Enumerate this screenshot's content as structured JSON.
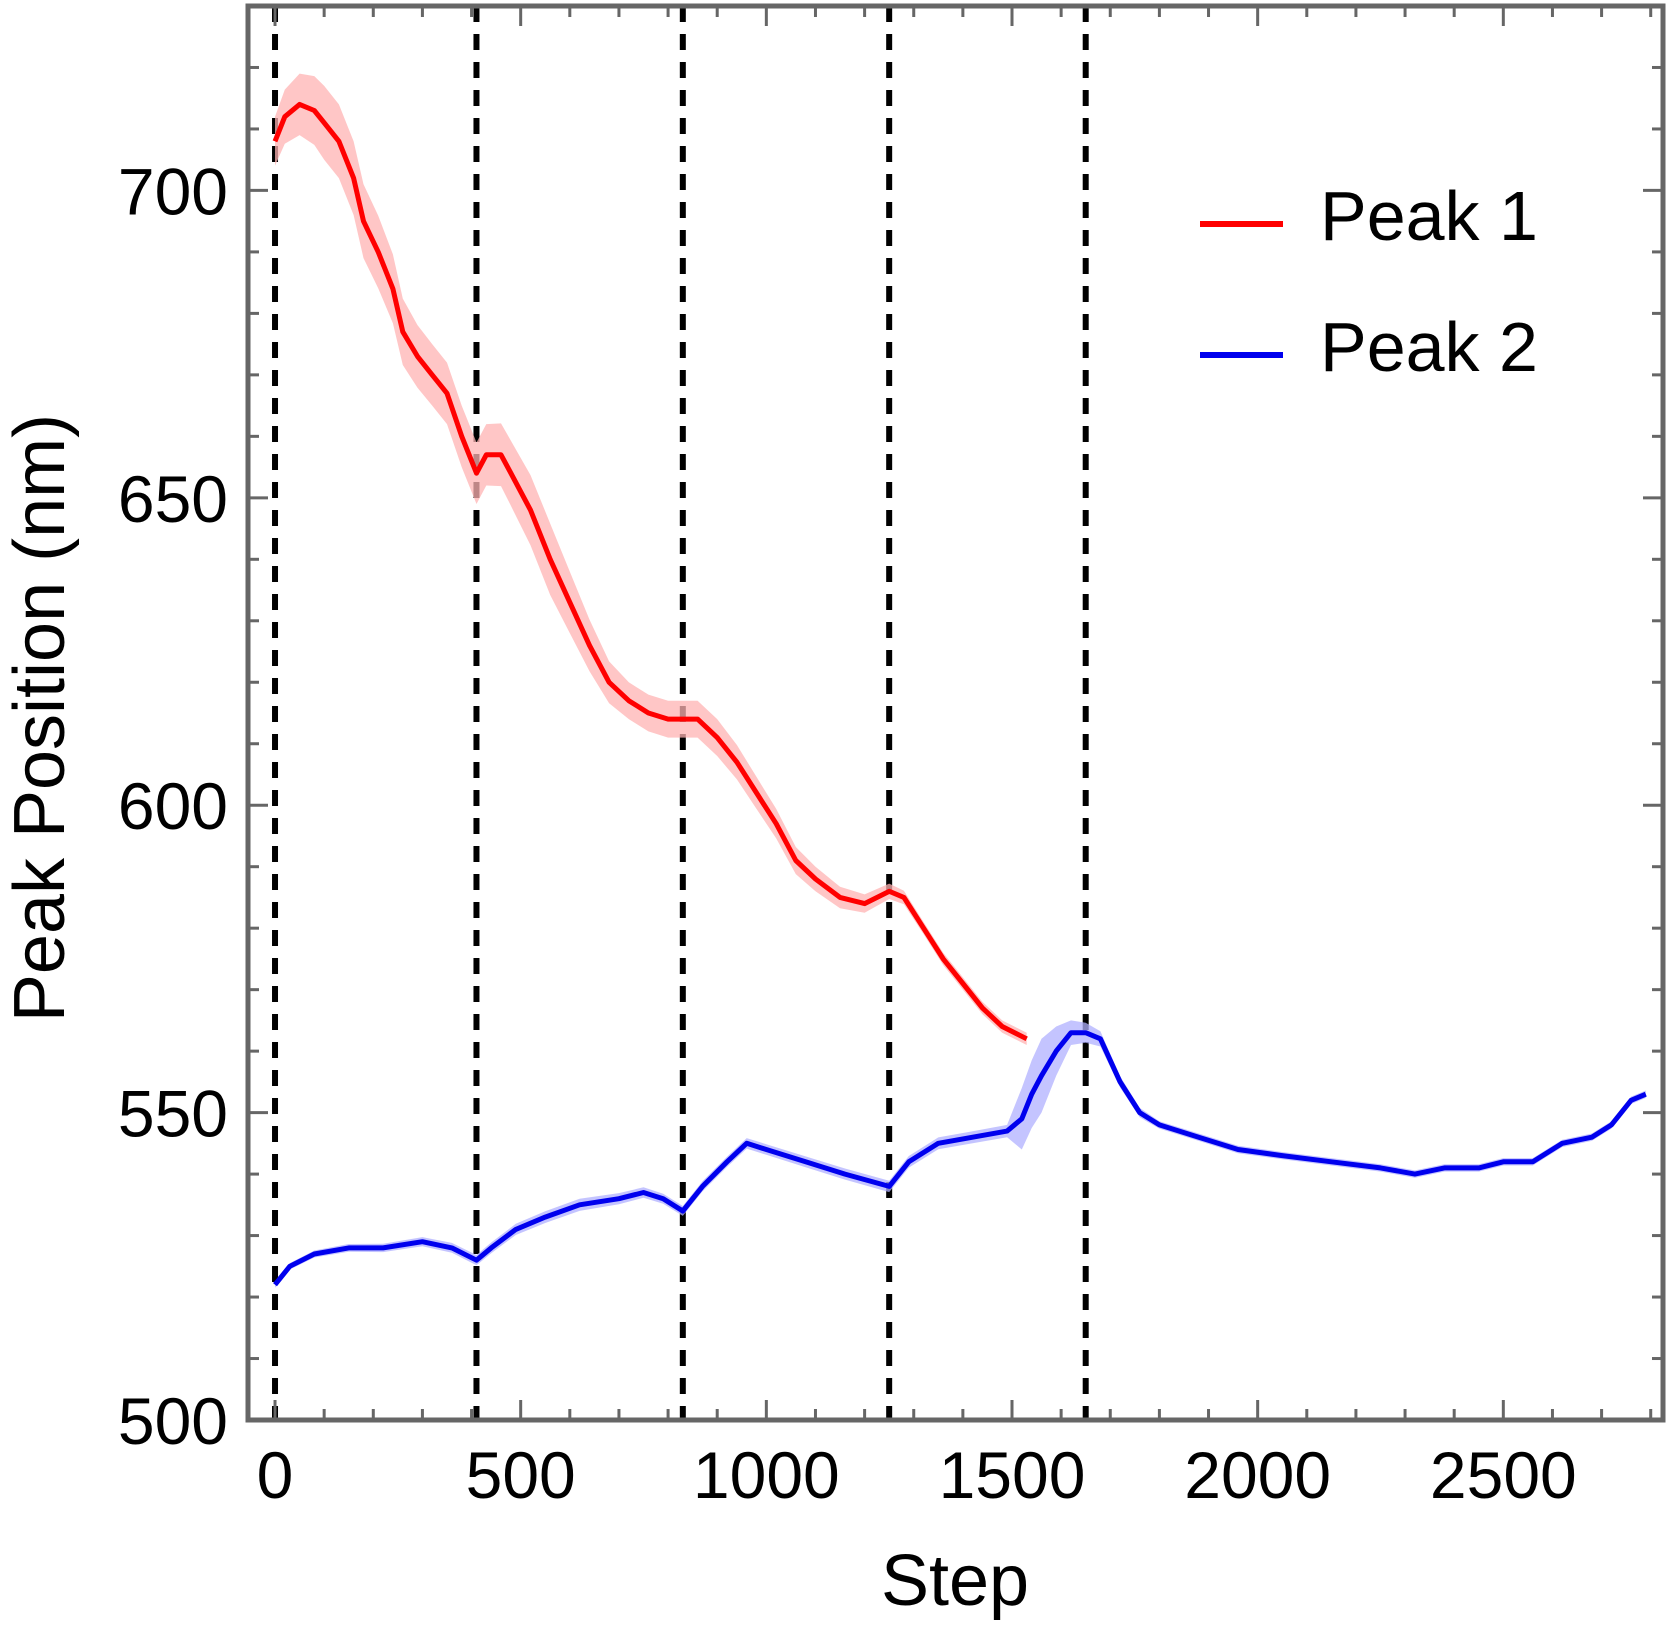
{
  "chart_data": {
    "type": "line",
    "xlabel": "Step",
    "ylabel": "Peak Position (nm)",
    "xlim": [
      -55,
      2825
    ],
    "ylim": [
      500,
      730
    ],
    "x_ticks": [
      "0",
      "500",
      "1000",
      "1500",
      "2000",
      "2500"
    ],
    "x_tick_values": [
      0,
      500,
      1000,
      1500,
      2000,
      2500
    ],
    "y_ticks": [
      "500",
      "550",
      "600",
      "650",
      "700"
    ],
    "y_tick_values": [
      500,
      550,
      600,
      650,
      700
    ],
    "vertical_dashed_lines": [
      0,
      410,
      830,
      1250,
      1650
    ],
    "legend_position": "top-right",
    "frame_color": "#666666",
    "series": [
      {
        "name": "Peak 1",
        "color": "#ff0000",
        "band_color": "#ffb3b3",
        "points": [
          [
            0,
            708
          ],
          [
            20,
            712
          ],
          [
            50,
            714
          ],
          [
            80,
            713
          ],
          [
            100,
            711
          ],
          [
            130,
            708
          ],
          [
            160,
            702
          ],
          [
            180,
            695
          ],
          [
            210,
            690
          ],
          [
            240,
            684
          ],
          [
            260,
            677
          ],
          [
            290,
            673
          ],
          [
            320,
            670
          ],
          [
            350,
            667
          ],
          [
            380,
            660
          ],
          [
            410,
            654
          ],
          [
            430,
            657
          ],
          [
            460,
            657
          ],
          [
            480,
            654
          ],
          [
            520,
            648
          ],
          [
            560,
            640
          ],
          [
            600,
            633
          ],
          [
            640,
            626
          ],
          [
            680,
            620
          ],
          [
            720,
            617
          ],
          [
            760,
            615
          ],
          [
            800,
            614
          ],
          [
            830,
            614
          ],
          [
            860,
            614
          ],
          [
            900,
            611
          ],
          [
            940,
            607
          ],
          [
            980,
            602
          ],
          [
            1020,
            597
          ],
          [
            1060,
            591
          ],
          [
            1100,
            588
          ],
          [
            1150,
            585
          ],
          [
            1200,
            584
          ],
          [
            1250,
            586
          ],
          [
            1280,
            585
          ],
          [
            1320,
            580
          ],
          [
            1360,
            575
          ],
          [
            1400,
            571
          ],
          [
            1440,
            567
          ],
          [
            1480,
            564
          ],
          [
            1530,
            562
          ]
        ],
        "band_width": [
          [
            0,
            4
          ],
          [
            100,
            6
          ],
          [
            200,
            6
          ],
          [
            300,
            5
          ],
          [
            450,
            5
          ],
          [
            550,
            6
          ],
          [
            700,
            3
          ],
          [
            900,
            3
          ],
          [
            1100,
            2
          ],
          [
            1300,
            1
          ],
          [
            1530,
            1
          ]
        ]
      },
      {
        "name": "Peak 2",
        "color": "#0000ee",
        "band_color": "#b0b0ff",
        "points": [
          [
            0,
            522
          ],
          [
            30,
            525
          ],
          [
            80,
            527
          ],
          [
            150,
            528
          ],
          [
            220,
            528
          ],
          [
            300,
            529
          ],
          [
            360,
            528
          ],
          [
            410,
            526
          ],
          [
            440,
            528
          ],
          [
            490,
            531
          ],
          [
            550,
            533
          ],
          [
            620,
            535
          ],
          [
            700,
            536
          ],
          [
            750,
            537
          ],
          [
            790,
            536
          ],
          [
            830,
            534
          ],
          [
            870,
            538
          ],
          [
            920,
            542
          ],
          [
            960,
            545
          ],
          [
            1000,
            544
          ],
          [
            1080,
            542
          ],
          [
            1160,
            540
          ],
          [
            1250,
            538
          ],
          [
            1290,
            542
          ],
          [
            1350,
            545
          ],
          [
            1420,
            546
          ],
          [
            1490,
            547
          ],
          [
            1520,
            549
          ],
          [
            1540,
            553
          ],
          [
            1560,
            556
          ],
          [
            1590,
            560
          ],
          [
            1620,
            563
          ],
          [
            1650,
            563
          ],
          [
            1680,
            562
          ],
          [
            1720,
            555
          ],
          [
            1760,
            550
          ],
          [
            1800,
            548
          ],
          [
            1880,
            546
          ],
          [
            1960,
            544
          ],
          [
            2050,
            543
          ],
          [
            2150,
            542
          ],
          [
            2250,
            541
          ],
          [
            2320,
            540
          ],
          [
            2380,
            541
          ],
          [
            2450,
            541
          ],
          [
            2500,
            542
          ],
          [
            2560,
            542
          ],
          [
            2620,
            545
          ],
          [
            2680,
            546
          ],
          [
            2720,
            548
          ],
          [
            2760,
            552
          ],
          [
            2790,
            553
          ]
        ],
        "band_width": [
          [
            0,
            0.5
          ],
          [
            600,
            1
          ],
          [
            800,
            0.8
          ],
          [
            1490,
            1
          ],
          [
            1520,
            5
          ],
          [
            1560,
            6
          ],
          [
            1620,
            2
          ],
          [
            1700,
            1
          ],
          [
            1800,
            0.6
          ],
          [
            2790,
            0.6
          ]
        ]
      }
    ]
  }
}
